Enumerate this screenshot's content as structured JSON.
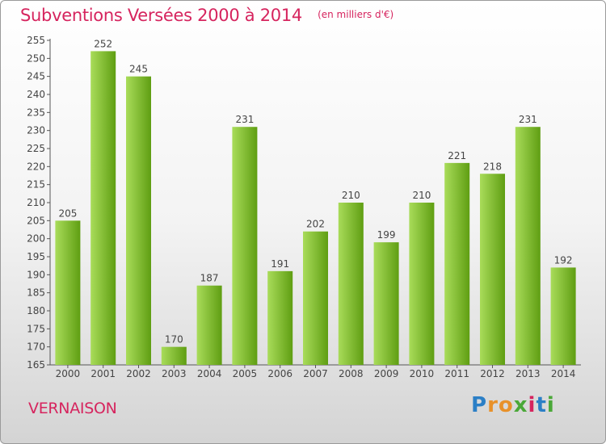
{
  "header": {
    "title": "Subventions Versées 2000 à 2014",
    "unit": "(en milliers d'€)"
  },
  "footer": {
    "commune": "VERNAISON",
    "brand": "Proxiti"
  },
  "colors": {
    "bar_light": "#a9dc5a",
    "bar_dark": "#5f9e12",
    "title": "#d6245e"
  },
  "chart_data": {
    "type": "bar",
    "title": "Subventions Versées 2000 à 2014",
    "subtitle": "(en milliers d'€)",
    "xlabel": "",
    "ylabel": "",
    "categories": [
      "2000",
      "2001",
      "2002",
      "2003",
      "2004",
      "2005",
      "2006",
      "2007",
      "2008",
      "2009",
      "2010",
      "2011",
      "2012",
      "2013",
      "2014"
    ],
    "values": [
      205,
      252,
      245,
      170,
      187,
      231,
      191,
      202,
      210,
      199,
      210,
      221,
      218,
      231,
      192
    ],
    "ylim": [
      165,
      255
    ],
    "ytick_step": 5,
    "grid": false,
    "data_labels": true,
    "legend": "none"
  }
}
